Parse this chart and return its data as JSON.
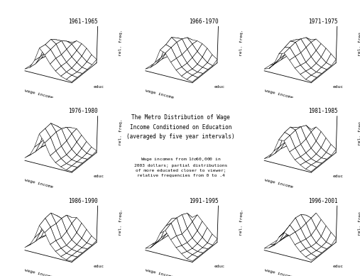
{
  "periods": [
    "1961-1965",
    "1966-1970",
    "1971-1975",
    "1976-1980",
    "1981-1985",
    "1986-1990",
    "1991-1995",
    "1996-2001"
  ],
  "title_text": "The Metro Distribution of Wage\nIncome Conditioned on Education\n(averaged by five year intervals)",
  "note_text": "Wage incomes from $1 to $60,000 in\n2003 dollars; partial distributions\nof more educated closer to viewer;\nrelative frequencies from 0 to .4",
  "xlabel": "wage income",
  "ylabel": "educ",
  "zlabel": "rel. freq.",
  "n_educ": 6,
  "n_income": 10,
  "elev": 22,
  "azim": -60,
  "edge_linewidth": 0.4,
  "period_fontsize": 5.5,
  "axis_label_fontsize": 4.5,
  "title_fontsize": 5.5,
  "note_fontsize": 4.5,
  "period_data": {
    "1961-1965": [
      [
        0.02,
        0.05,
        0.14,
        0.28,
        0.22,
        0.14,
        0.08,
        0.04,
        0.02,
        0.01
      ],
      [
        0.02,
        0.05,
        0.14,
        0.28,
        0.24,
        0.16,
        0.09,
        0.04,
        0.02,
        0.01
      ],
      [
        0.03,
        0.07,
        0.16,
        0.3,
        0.26,
        0.16,
        0.09,
        0.04,
        0.01,
        0.01
      ],
      [
        0.02,
        0.06,
        0.14,
        0.26,
        0.26,
        0.18,
        0.11,
        0.06,
        0.02,
        0.01
      ],
      [
        0.02,
        0.05,
        0.11,
        0.2,
        0.22,
        0.2,
        0.14,
        0.09,
        0.04,
        0.02
      ],
      [
        0.01,
        0.03,
        0.07,
        0.13,
        0.17,
        0.2,
        0.18,
        0.14,
        0.08,
        0.04
      ]
    ],
    "1966-1970": [
      [
        0.02,
        0.05,
        0.12,
        0.26,
        0.24,
        0.16,
        0.09,
        0.04,
        0.02,
        0.01
      ],
      [
        0.02,
        0.05,
        0.13,
        0.28,
        0.26,
        0.16,
        0.08,
        0.04,
        0.02,
        0.01
      ],
      [
        0.02,
        0.06,
        0.15,
        0.32,
        0.28,
        0.16,
        0.08,
        0.03,
        0.01,
        0.01
      ],
      [
        0.02,
        0.05,
        0.13,
        0.28,
        0.28,
        0.18,
        0.1,
        0.04,
        0.02,
        0.01
      ],
      [
        0.01,
        0.04,
        0.1,
        0.22,
        0.26,
        0.2,
        0.13,
        0.08,
        0.03,
        0.01
      ],
      [
        0.01,
        0.03,
        0.07,
        0.14,
        0.2,
        0.2,
        0.18,
        0.14,
        0.08,
        0.04
      ]
    ],
    "1971-1975": [
      [
        0.02,
        0.04,
        0.1,
        0.22,
        0.24,
        0.18,
        0.11,
        0.06,
        0.02,
        0.01
      ],
      [
        0.02,
        0.05,
        0.12,
        0.25,
        0.26,
        0.18,
        0.1,
        0.05,
        0.02,
        0.01
      ],
      [
        0.02,
        0.05,
        0.13,
        0.28,
        0.28,
        0.18,
        0.09,
        0.04,
        0.01,
        0.01
      ],
      [
        0.02,
        0.05,
        0.12,
        0.26,
        0.28,
        0.2,
        0.11,
        0.05,
        0.02,
        0.01
      ],
      [
        0.01,
        0.04,
        0.1,
        0.21,
        0.26,
        0.22,
        0.14,
        0.08,
        0.03,
        0.01
      ],
      [
        0.01,
        0.02,
        0.07,
        0.14,
        0.2,
        0.22,
        0.18,
        0.14,
        0.09,
        0.04
      ]
    ],
    "1976-1980": [
      [
        0.03,
        0.07,
        0.17,
        0.32,
        0.24,
        0.12,
        0.06,
        0.03,
        0.01,
        0.01
      ],
      [
        0.03,
        0.07,
        0.18,
        0.34,
        0.26,
        0.13,
        0.06,
        0.02,
        0.01,
        0.01
      ],
      [
        0.03,
        0.08,
        0.19,
        0.36,
        0.28,
        0.14,
        0.06,
        0.02,
        0.01,
        0.01
      ],
      [
        0.03,
        0.07,
        0.16,
        0.3,
        0.28,
        0.16,
        0.08,
        0.03,
        0.01,
        0.01
      ],
      [
        0.02,
        0.05,
        0.12,
        0.23,
        0.26,
        0.2,
        0.12,
        0.06,
        0.02,
        0.01
      ],
      [
        0.01,
        0.03,
        0.08,
        0.16,
        0.22,
        0.22,
        0.16,
        0.1,
        0.05,
        0.02
      ]
    ],
    "1981-1985": [
      [
        0.02,
        0.05,
        0.13,
        0.26,
        0.26,
        0.16,
        0.09,
        0.05,
        0.02,
        0.01
      ],
      [
        0.02,
        0.05,
        0.14,
        0.3,
        0.28,
        0.16,
        0.08,
        0.04,
        0.02,
        0.01
      ],
      [
        0.02,
        0.06,
        0.15,
        0.32,
        0.3,
        0.16,
        0.08,
        0.03,
        0.01,
        0.01
      ],
      [
        0.02,
        0.05,
        0.13,
        0.28,
        0.3,
        0.18,
        0.09,
        0.04,
        0.01,
        0.01
      ],
      [
        0.01,
        0.04,
        0.1,
        0.2,
        0.28,
        0.22,
        0.13,
        0.07,
        0.03,
        0.01
      ],
      [
        0.01,
        0.02,
        0.06,
        0.13,
        0.2,
        0.24,
        0.2,
        0.14,
        0.08,
        0.04
      ]
    ],
    "1986-1990": [
      [
        0.03,
        0.07,
        0.16,
        0.3,
        0.24,
        0.13,
        0.07,
        0.03,
        0.01,
        0.01
      ],
      [
        0.03,
        0.07,
        0.18,
        0.34,
        0.26,
        0.13,
        0.06,
        0.02,
        0.01,
        0.01
      ],
      [
        0.03,
        0.08,
        0.2,
        0.36,
        0.26,
        0.12,
        0.05,
        0.02,
        0.01,
        0.01
      ],
      [
        0.02,
        0.06,
        0.16,
        0.3,
        0.28,
        0.15,
        0.07,
        0.03,
        0.01,
        0.01
      ],
      [
        0.02,
        0.04,
        0.12,
        0.23,
        0.28,
        0.2,
        0.11,
        0.06,
        0.02,
        0.01
      ],
      [
        0.01,
        0.03,
        0.07,
        0.14,
        0.22,
        0.23,
        0.18,
        0.12,
        0.06,
        0.02
      ]
    ],
    "1991-1995": [
      [
        0.02,
        0.04,
        0.1,
        0.22,
        0.26,
        0.18,
        0.11,
        0.06,
        0.02,
        0.01
      ],
      [
        0.02,
        0.05,
        0.12,
        0.26,
        0.3,
        0.18,
        0.09,
        0.04,
        0.02,
        0.01
      ],
      [
        0.02,
        0.05,
        0.13,
        0.3,
        0.32,
        0.16,
        0.08,
        0.03,
        0.01,
        0.01
      ],
      [
        0.02,
        0.05,
        0.12,
        0.26,
        0.32,
        0.18,
        0.09,
        0.04,
        0.01,
        0.01
      ],
      [
        0.01,
        0.03,
        0.09,
        0.2,
        0.3,
        0.22,
        0.13,
        0.07,
        0.02,
        0.01
      ],
      [
        0.01,
        0.02,
        0.05,
        0.12,
        0.22,
        0.26,
        0.2,
        0.14,
        0.08,
        0.04
      ]
    ],
    "1996-2001": [
      [
        0.02,
        0.04,
        0.08,
        0.18,
        0.24,
        0.22,
        0.14,
        0.08,
        0.04,
        0.02
      ],
      [
        0.02,
        0.04,
        0.09,
        0.2,
        0.28,
        0.22,
        0.13,
        0.07,
        0.03,
        0.01
      ],
      [
        0.02,
        0.04,
        0.1,
        0.22,
        0.32,
        0.22,
        0.12,
        0.05,
        0.02,
        0.01
      ],
      [
        0.01,
        0.04,
        0.09,
        0.2,
        0.32,
        0.24,
        0.12,
        0.05,
        0.02,
        0.01
      ],
      [
        0.01,
        0.03,
        0.07,
        0.16,
        0.28,
        0.26,
        0.16,
        0.08,
        0.03,
        0.01
      ],
      [
        0.01,
        0.02,
        0.04,
        0.1,
        0.2,
        0.28,
        0.22,
        0.16,
        0.1,
        0.05
      ]
    ]
  }
}
